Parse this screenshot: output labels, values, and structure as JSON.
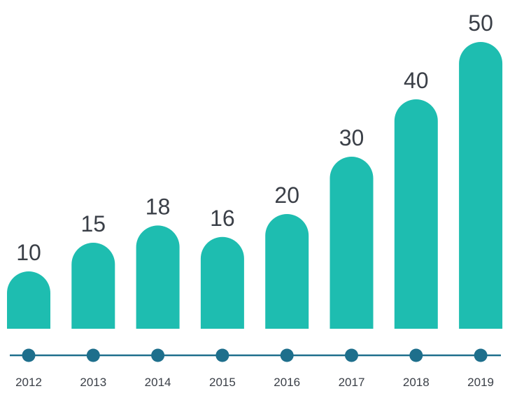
{
  "colors": {
    "bar": "#1ebdb0",
    "axis": "#1e6f8c",
    "marker": "#1e6f8c",
    "value_text": "#3a3f47",
    "year_text": "#3a3f47"
  },
  "chart_data": {
    "type": "bar",
    "categories": [
      "2012",
      "2013",
      "2014",
      "2015",
      "2016",
      "2017",
      "2018",
      "2019"
    ],
    "values": [
      10,
      15,
      18,
      16,
      20,
      30,
      40,
      50
    ],
    "data_labels": [
      "10",
      "15",
      "18",
      "16",
      "20",
      "30",
      "40",
      "50"
    ],
    "title": "",
    "xlabel": "",
    "ylabel": "",
    "ylim": [
      0,
      50
    ],
    "grid": false,
    "legend": "none"
  }
}
